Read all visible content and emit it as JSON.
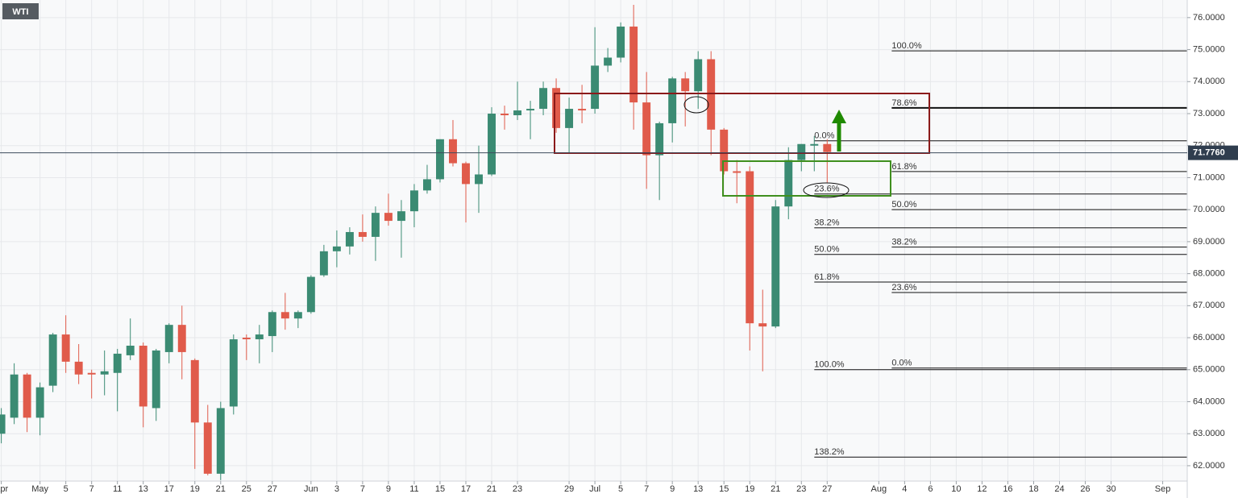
{
  "chart_data": {
    "type": "candlestick",
    "title": "WTI",
    "open": [
      63.0,
      63.5,
      64.85,
      63.5,
      64.5,
      66.1,
      65.25,
      64.9,
      64.85,
      64.9,
      65.45,
      65.75,
      63.8,
      65.55,
      66.4,
      65.3,
      63.35,
      61.75,
      63.85,
      66.0,
      65.95,
      66.05,
      66.8,
      66.6,
      66.8,
      67.95,
      68.7,
      68.85,
      69.3,
      69.15,
      69.9,
      69.65,
      69.95,
      70.6,
      70.95,
      72.2,
      71.45,
      70.8,
      71.1,
      73.0,
      72.95,
      73.1,
      73.15,
      73.8,
      72.55,
      73.15,
      73.15,
      74.5,
      74.75,
      75.72,
      73.35,
      71.7,
      72.7,
      74.1,
      73.7,
      74.7,
      72.5,
      71.2,
      71.2,
      66.45,
      66.35,
      70.1,
      71.55,
      72.0,
      72.05
    ],
    "high": [
      63.8,
      65.2,
      64.9,
      64.6,
      66.15,
      66.7,
      65.8,
      65.0,
      65.6,
      65.65,
      66.6,
      65.85,
      65.65,
      66.45,
      67.0,
      65.35,
      63.9,
      64.0,
      66.1,
      66.1,
      66.4,
      66.85,
      67.4,
      66.85,
      67.95,
      68.9,
      69.35,
      69.45,
      69.85,
      70.1,
      70.5,
      70.3,
      70.8,
      71.4,
      72.2,
      72.8,
      71.5,
      72.0,
      73.2,
      73.25,
      74.0,
      73.4,
      74.0,
      74.1,
      73.5,
      73.9,
      75.7,
      75.05,
      75.85,
      76.4,
      74.3,
      72.75,
      74.15,
      74.3,
      74.95,
      74.95,
      72.55,
      71.55,
      71.35,
      67.5,
      70.3,
      71.95,
      72.05,
      72.3,
      72.2
    ],
    "low": [
      62.7,
      63.3,
      63.05,
      62.95,
      64.3,
      64.9,
      64.55,
      64.1,
      64.2,
      63.7,
      65.3,
      63.2,
      63.4,
      65.2,
      64.7,
      61.9,
      61.7,
      61.55,
      63.6,
      65.3,
      65.2,
      65.55,
      66.25,
      66.3,
      66.75,
      67.9,
      68.2,
      68.6,
      69.0,
      68.4,
      69.5,
      68.5,
      69.45,
      70.5,
      70.85,
      71.35,
      69.6,
      69.9,
      71.05,
      72.5,
      72.8,
      72.2,
      72.95,
      72.4,
      71.75,
      72.7,
      73.0,
      74.3,
      74.6,
      72.5,
      70.65,
      70.3,
      72.1,
      72.6,
      73.15,
      71.7,
      71.1,
      70.2,
      65.6,
      64.95,
      66.3,
      69.7,
      71.2,
      71.2,
      70.85
    ],
    "close": [
      63.6,
      64.85,
      63.5,
      64.45,
      66.1,
      65.25,
      64.85,
      64.85,
      64.95,
      65.5,
      65.75,
      63.85,
      65.6,
      66.4,
      65.55,
      63.35,
      61.75,
      63.8,
      65.95,
      65.95,
      66.1,
      66.8,
      66.6,
      66.8,
      67.9,
      68.7,
      68.85,
      69.3,
      69.15,
      69.9,
      69.65,
      69.95,
      70.6,
      70.95,
      72.2,
      71.45,
      70.8,
      71.1,
      73.0,
      72.95,
      73.1,
      73.15,
      73.8,
      72.55,
      73.15,
      73.1,
      74.5,
      74.75,
      75.72,
      73.35,
      71.7,
      72.7,
      74.1,
      73.7,
      74.7,
      72.5,
      71.2,
      71.15,
      66.45,
      66.35,
      70.1,
      71.55,
      72.05,
      72.05,
      71.8
    ],
    "up_color": "#3b8b73",
    "down_color": "#e05b4b",
    "xlim": [
      -0.1,
      91.9
    ],
    "xticks": [
      {
        "value": 0,
        "label": "Apr"
      },
      {
        "value": 3,
        "label": "May"
      },
      {
        "value": 5,
        "label": "5"
      },
      {
        "value": 7,
        "label": "7"
      },
      {
        "value": 9,
        "label": "11"
      },
      {
        "value": 11,
        "label": "13"
      },
      {
        "value": 13,
        "label": "17"
      },
      {
        "value": 15,
        "label": "19"
      },
      {
        "value": 17,
        "label": "21"
      },
      {
        "value": 19,
        "label": "25"
      },
      {
        "value": 21,
        "label": "27"
      },
      {
        "value": 24,
        "label": "Jun"
      },
      {
        "value": 26,
        "label": "3"
      },
      {
        "value": 28,
        "label": "7"
      },
      {
        "value": 30,
        "label": "9"
      },
      {
        "value": 32,
        "label": "11"
      },
      {
        "value": 34,
        "label": "15"
      },
      {
        "value": 36,
        "label": "17"
      },
      {
        "value": 38,
        "label": "21"
      },
      {
        "value": 40,
        "label": "23"
      },
      {
        "value": 44,
        "label": "29"
      },
      {
        "value": 46,
        "label": "Jul"
      },
      {
        "value": 48,
        "label": "5"
      },
      {
        "value": 50,
        "label": "7"
      },
      {
        "value": 52,
        "label": "9"
      },
      {
        "value": 54,
        "label": "13"
      },
      {
        "value": 56,
        "label": "15"
      },
      {
        "value": 58,
        "label": "19"
      },
      {
        "value": 60,
        "label": "21"
      },
      {
        "value": 62,
        "label": "23"
      },
      {
        "value": 64,
        "label": "27"
      },
      {
        "value": 68,
        "label": "Aug"
      },
      {
        "value": 70,
        "label": "4"
      },
      {
        "value": 72,
        "label": "6"
      },
      {
        "value": 74,
        "label": "10"
      },
      {
        "value": 76,
        "label": "12"
      },
      {
        "value": 78,
        "label": "16"
      },
      {
        "value": 80,
        "label": "18"
      },
      {
        "value": 82,
        "label": "24"
      },
      {
        "value": 84,
        "label": "26"
      },
      {
        "value": 86,
        "label": "30"
      },
      {
        "value": 90,
        "label": "Sep"
      }
    ],
    "ylim": [
      61.52,
      76.55
    ],
    "yticks": [
      {
        "value": 62,
        "label": "62.0000"
      },
      {
        "value": 63,
        "label": "63.0000"
      },
      {
        "value": 64,
        "label": "64.0000"
      },
      {
        "value": 65,
        "label": "65.0000"
      },
      {
        "value": 66,
        "label": "66.0000"
      },
      {
        "value": 67,
        "label": "67.0000"
      },
      {
        "value": 68,
        "label": "68.0000"
      },
      {
        "value": 69,
        "label": "69.0000"
      },
      {
        "value": 70,
        "label": "70.0000"
      },
      {
        "value": 71,
        "label": "71.0000"
      },
      {
        "value": 72,
        "label": "72.0000"
      },
      {
        "value": 73,
        "label": "73.0000"
      },
      {
        "value": 74,
        "label": "74.0000"
      },
      {
        "value": 75,
        "label": "75.0000"
      },
      {
        "value": 76,
        "label": "76.0000"
      }
    ],
    "grid": true,
    "last_price": {
      "value": 71.776,
      "label": "71.7760"
    },
    "fib_levels": [
      {
        "label": "100.0%",
        "value": 74.96,
        "from": 69
      },
      {
        "label": "78.6%",
        "value": 73.18,
        "from": 69,
        "line_width": 2
      },
      {
        "label": "0.0%",
        "value": 72.15,
        "from": 63
      },
      {
        "label": "61.8%",
        "value": 71.19,
        "from": 69
      },
      {
        "label": "23.6%",
        "value": 70.49,
        "from": 63
      },
      {
        "label": "50.0%",
        "value": 70.0,
        "from": 69
      },
      {
        "label": "38.2%",
        "value": 69.43,
        "from": 63
      },
      {
        "label": "38.2%",
        "value": 68.83,
        "from": 69
      },
      {
        "label": "50.0%",
        "value": 68.6,
        "from": 63
      },
      {
        "label": "61.8%",
        "value": 67.74,
        "from": 63
      },
      {
        "label": "23.6%",
        "value": 67.41,
        "from": 69
      },
      {
        "label": "100.0%",
        "value": 65.0,
        "from": 63
      },
      {
        "label": "0.0%",
        "value": 65.05,
        "from": 69
      },
      {
        "label": "138.2%",
        "value": 62.27,
        "from": 63
      }
    ]
  }
}
